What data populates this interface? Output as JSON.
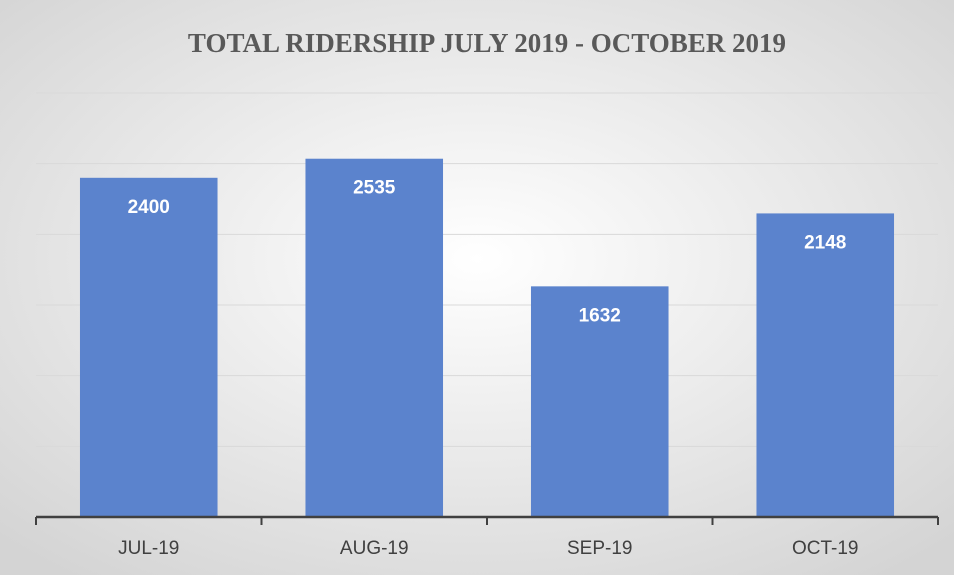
{
  "chart_data": {
    "type": "bar",
    "title": "TOTAL RIDERSHIP JULY 2019 - OCTOBER 2019",
    "categories": [
      "JUL-19",
      "AUG-19",
      "SEP-19",
      "OCT-19"
    ],
    "values": [
      2400,
      2535,
      1632,
      2148
    ],
    "color": "#5b83cd",
    "ylim": [
      0,
      3000
    ],
    "yticks": [
      0,
      500,
      1000,
      1500,
      2000,
      2500,
      3000
    ],
    "grid": true
  }
}
